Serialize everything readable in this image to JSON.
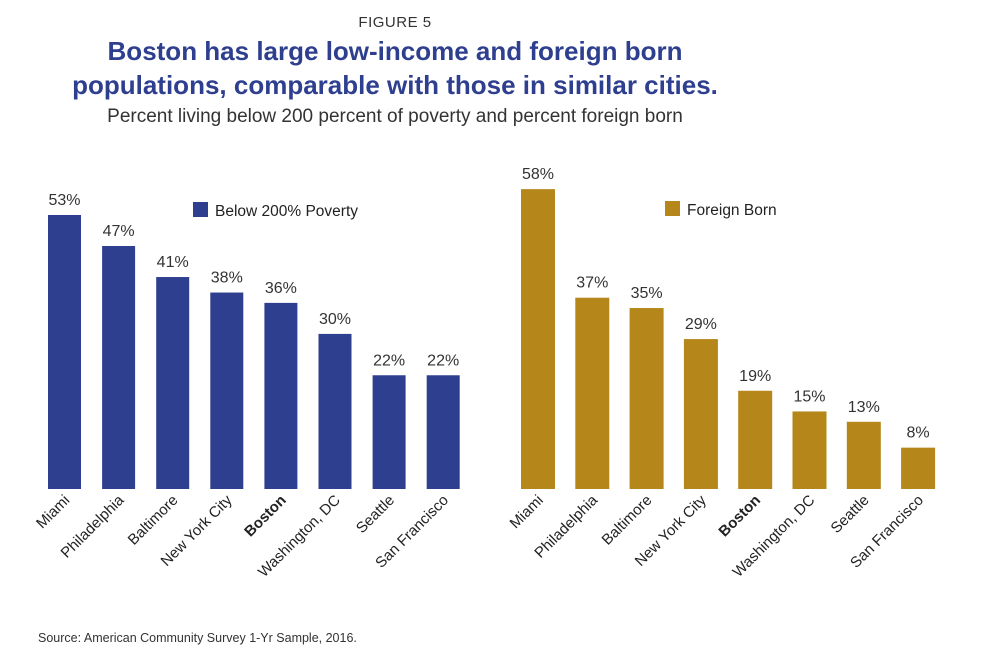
{
  "figure_label": "FIGURE 5",
  "title_line1": "Boston has large low-income and foreign born",
  "title_line2": "populations, comparable with those in similar cities.",
  "subtitle": "Percent living below 200 percent of poverty and percent foreign born",
  "source": "Source: American Community Survey 1-Yr Sample, 2016.",
  "chart_data": [
    {
      "type": "bar",
      "legend": "Below 200% Poverty",
      "color": "#2f3f8f",
      "categories": [
        "Miami",
        "Philadelphia",
        "Baltimore",
        "New York City",
        "Boston",
        "Washington, DC",
        "Seattle",
        "San Francisco"
      ],
      "values": [
        53,
        47,
        41,
        38,
        36,
        30,
        22,
        22
      ],
      "value_labels": [
        "53%",
        "47%",
        "41%",
        "38%",
        "36%",
        "30%",
        "22%",
        "22%"
      ],
      "highlight": "Boston",
      "ylim": [
        0,
        60
      ]
    },
    {
      "type": "bar",
      "legend": "Foreign Born",
      "color": "#b5861a",
      "categories": [
        "Miami",
        "Philadelphia",
        "Baltimore",
        "New York City",
        "Boston",
        "Washington, DC",
        "Seattle",
        "San Francisco"
      ],
      "values": [
        58,
        37,
        35,
        29,
        19,
        15,
        13,
        8
      ],
      "value_labels": [
        "58%",
        "37%",
        "35%",
        "29%",
        "19%",
        "15%",
        "13%",
        "8%"
      ],
      "highlight": "Boston",
      "ylim": [
        0,
        60
      ]
    }
  ]
}
